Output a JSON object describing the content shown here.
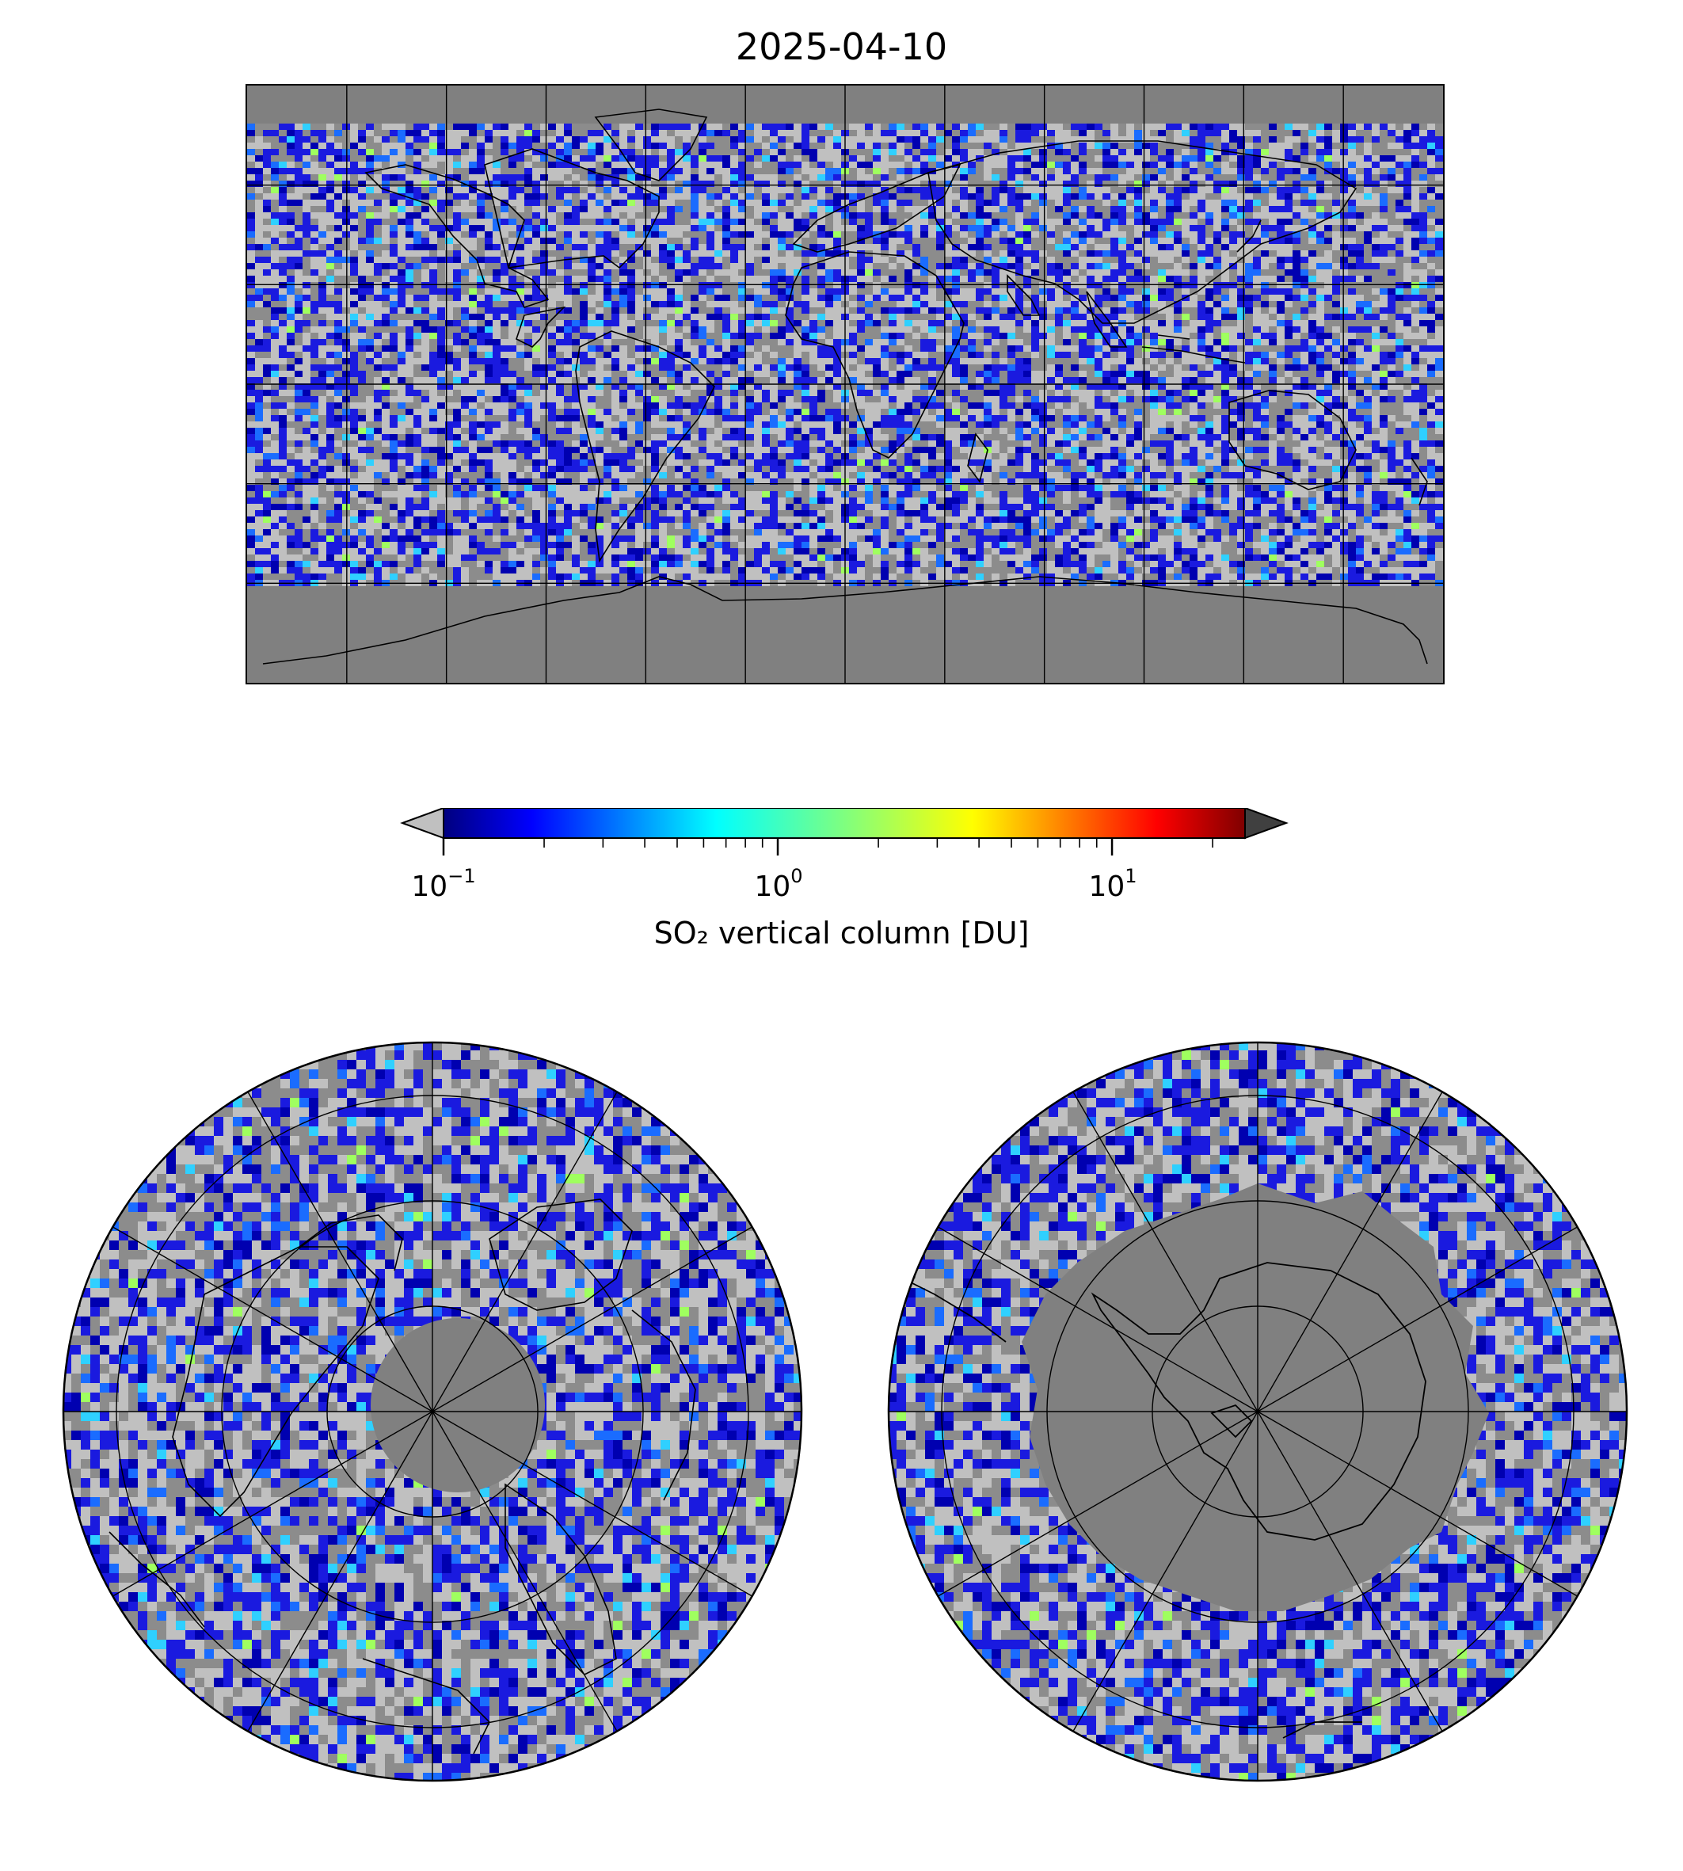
{
  "title": "2025-04-10",
  "colorbar": {
    "label": "SO₂ vertical column [DU]",
    "scale": "log",
    "range": [
      0.1,
      25
    ],
    "colormap": "jet",
    "extend": "both",
    "under_color": "#c0c0c0",
    "over_color": "#404040",
    "ticks": [
      {
        "base": "10",
        "exp": "−1"
      },
      {
        "base": "10",
        "exp": "0"
      },
      {
        "base": "10",
        "exp": "1"
      }
    ]
  },
  "maps": {
    "global": "equirectangular",
    "north": "north polar stereographic",
    "south": "south polar stereographic",
    "no_data_color": "#808080"
  }
}
